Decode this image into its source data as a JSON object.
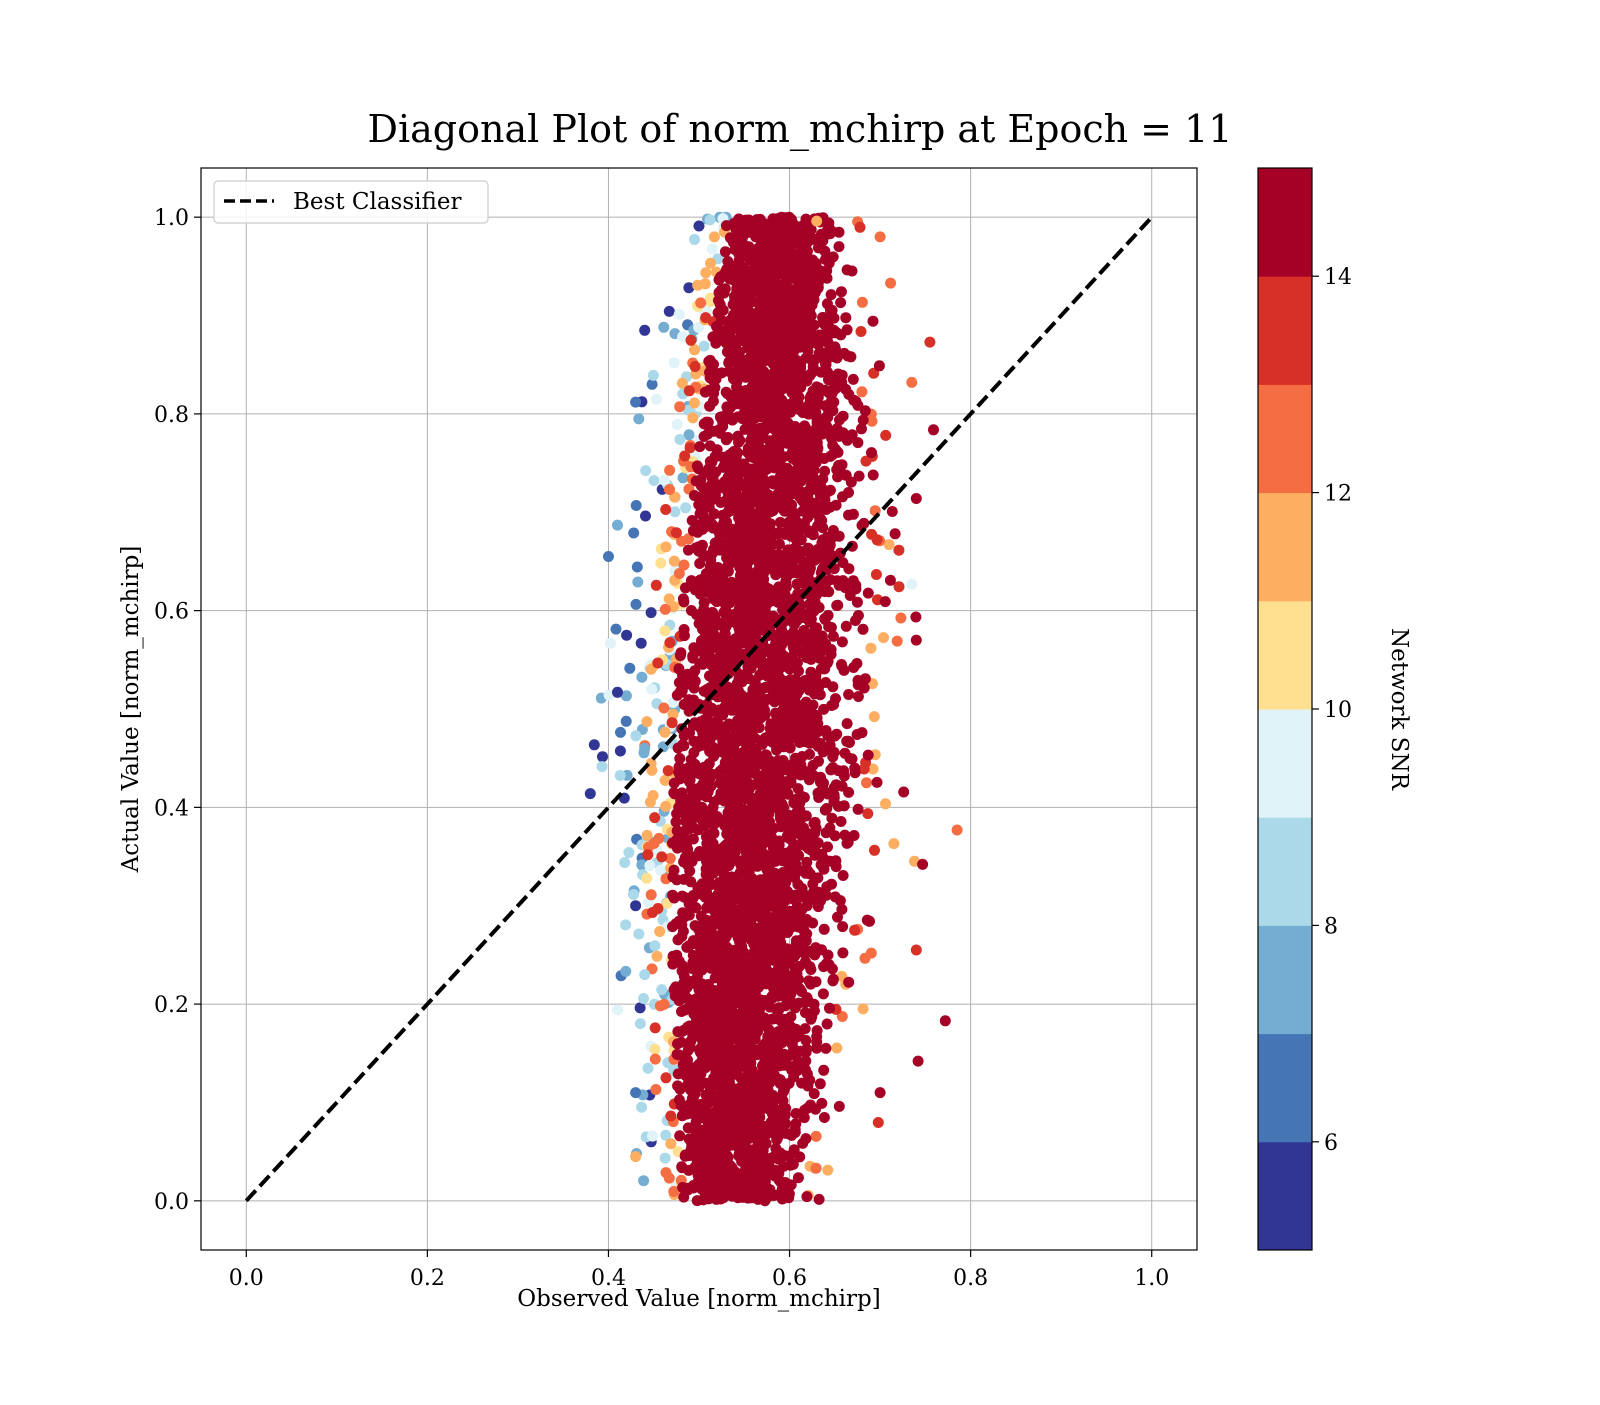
{
  "chart_data": {
    "type": "scatter",
    "title": "Diagonal Plot of norm_mchirp at Epoch = 11",
    "xlabel": "Observed Value [norm_mchirp]",
    "ylabel": "Actual Value [norm_mchirp]",
    "xlim": [
      -0.05,
      1.05
    ],
    "ylim": [
      -0.05,
      1.05
    ],
    "xticks": [
      "0.0",
      "0.2",
      "0.4",
      "0.6",
      "0.8",
      "1.0"
    ],
    "yticks": [
      "0.0",
      "0.2",
      "0.4",
      "0.6",
      "0.8",
      "1.0"
    ],
    "grid": true,
    "legend": {
      "placement": "upper-left",
      "entries": [
        "Best Classifier"
      ]
    },
    "reference_line": {
      "name": "Best Classifier",
      "x": [
        0.0,
        1.0
      ],
      "y": [
        0.0,
        1.0
      ],
      "style": "dashed",
      "color": "#000000"
    },
    "colorbar": {
      "label": "Network SNR",
      "range": [
        5,
        15
      ],
      "ticks": [
        "6",
        "8",
        "10",
        "12",
        "14"
      ],
      "colormap": "RdYlBu_r",
      "levels": [
        "#313695",
        "#4575b4",
        "#74add1",
        "#abd9e9",
        "#e0f3f8",
        "#fee090",
        "#fdae61",
        "#f46d43",
        "#d73027",
        "#a50026"
      ]
    },
    "scatter_summary": {
      "x_center": 0.57,
      "x_core_range": [
        0.47,
        0.69
      ],
      "y_range": [
        0.0,
        1.0
      ],
      "dominant_snr": "above 14",
      "low_snr_side": "left edge of cloud"
    },
    "series": [
      {
        "points": [
          {
            "x": 0.4,
            "y": 0.655,
            "c": 6.5
          },
          {
            "x": 0.41,
            "y": 0.687,
            "c": 7.2
          },
          {
            "x": 0.38,
            "y": 0.414,
            "c": 5.5
          },
          {
            "x": 0.41,
            "y": 0.517,
            "c": 5.6
          },
          {
            "x": 0.43,
            "y": 0.812,
            "c": 6.3
          },
          {
            "x": 0.42,
            "y": 0.575,
            "c": 5.4
          },
          {
            "x": 0.44,
            "y": 0.885,
            "c": 5.8
          },
          {
            "x": 0.44,
            "y": 0.46,
            "c": 7.5
          },
          {
            "x": 0.43,
            "y": 0.3,
            "c": 5.2
          },
          {
            "x": 0.43,
            "y": 0.045,
            "c": 11.5
          },
          {
            "x": 0.44,
            "y": 0.23,
            "c": 8.6
          },
          {
            "x": 0.43,
            "y": 0.11,
            "c": 6.0
          },
          {
            "x": 0.755,
            "y": 0.873,
            "c": 13.5
          },
          {
            "x": 0.735,
            "y": 0.832,
            "c": 12.5
          },
          {
            "x": 0.785,
            "y": 0.377,
            "c": 12.7
          },
          {
            "x": 0.772,
            "y": 0.183,
            "c": 14.5
          },
          {
            "x": 0.742,
            "y": 0.142,
            "c": 14.3
          },
          {
            "x": 0.74,
            "y": 0.714,
            "c": 14.6
          },
          {
            "x": 0.735,
            "y": 0.627,
            "c": 9.6
          },
          {
            "x": 0.747,
            "y": 0.342,
            "c": 14.6
          },
          {
            "x": 0.7,
            "y": 0.98,
            "c": 12.5
          },
          {
            "x": 0.63,
            "y": 0.996,
            "c": 11.5
          },
          {
            "x": 0.655,
            "y": 0.096,
            "c": 14.5
          },
          {
            "x": 0.7,
            "y": 0.11,
            "c": 14.6
          },
          {
            "x": 0.74,
            "y": 0.57,
            "c": 14.7
          },
          {
            "x": 0.74,
            "y": 0.255,
            "c": 13.5
          }
        ]
      }
    ]
  }
}
